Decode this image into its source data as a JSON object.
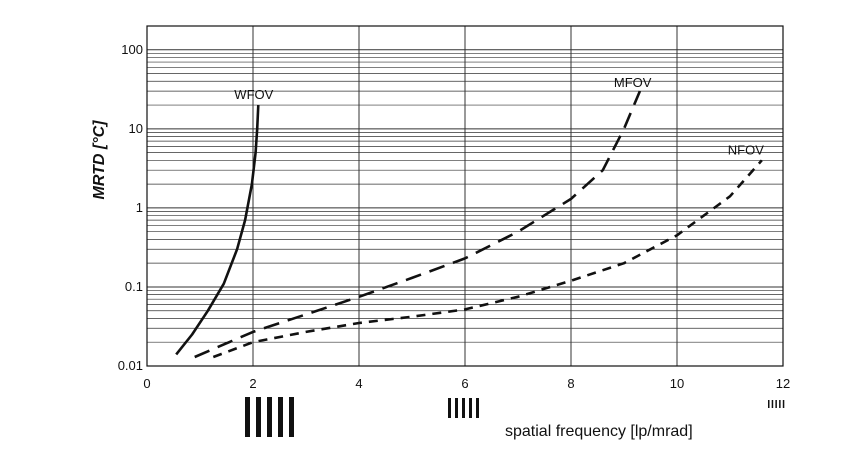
{
  "chart_data": {
    "type": "line",
    "title": "",
    "xlabel": "spatial frequency [lp/mrad]",
    "ylabel": "MRTD [°C]",
    "xlim": [
      0,
      12
    ],
    "ylim": [
      0.01,
      200
    ],
    "yscale": "log",
    "grid": true,
    "x_ticks": [
      "0",
      "2",
      "4",
      "6",
      "8",
      "10",
      "12"
    ],
    "y_ticks": [
      "0.01",
      "0.1",
      "1",
      "10",
      "100"
    ],
    "series": [
      {
        "name": "WFOV",
        "style": "solid",
        "x": [
          0.55,
          0.85,
          1.15,
          1.45,
          1.7,
          1.85,
          1.98,
          2.05,
          2.08,
          2.1
        ],
        "y": [
          0.014,
          0.025,
          0.05,
          0.11,
          0.3,
          0.7,
          2.0,
          5.0,
          10.0,
          20.0
        ]
      },
      {
        "name": "MFOV",
        "style": "dashed",
        "x": [
          0.9,
          2.0,
          3.0,
          4.0,
          5.0,
          6.0,
          7.0,
          8.0,
          8.6,
          9.0,
          9.3
        ],
        "y": [
          0.013,
          0.027,
          0.045,
          0.075,
          0.13,
          0.23,
          0.5,
          1.3,
          3.0,
          10.0,
          30.0
        ]
      },
      {
        "name": "NFOV",
        "style": "dotted-dash",
        "x": [
          1.25,
          2.0,
          3.0,
          4.0,
          5.0,
          6.0,
          7.0,
          8.0,
          9.0,
          10.0,
          11.0,
          11.6
        ],
        "y": [
          0.013,
          0.02,
          0.027,
          0.035,
          0.042,
          0.052,
          0.075,
          0.12,
          0.2,
          0.45,
          1.4,
          4.0
        ]
      }
    ],
    "colors": {
      "line": "#111111",
      "grid": "#333333",
      "background": "#ffffff"
    },
    "bar_patterns": [
      {
        "label": "",
        "bars": 5
      },
      {
        "label": "",
        "bars": 5
      },
      {
        "label": "",
        "bars": 5
      }
    ]
  }
}
